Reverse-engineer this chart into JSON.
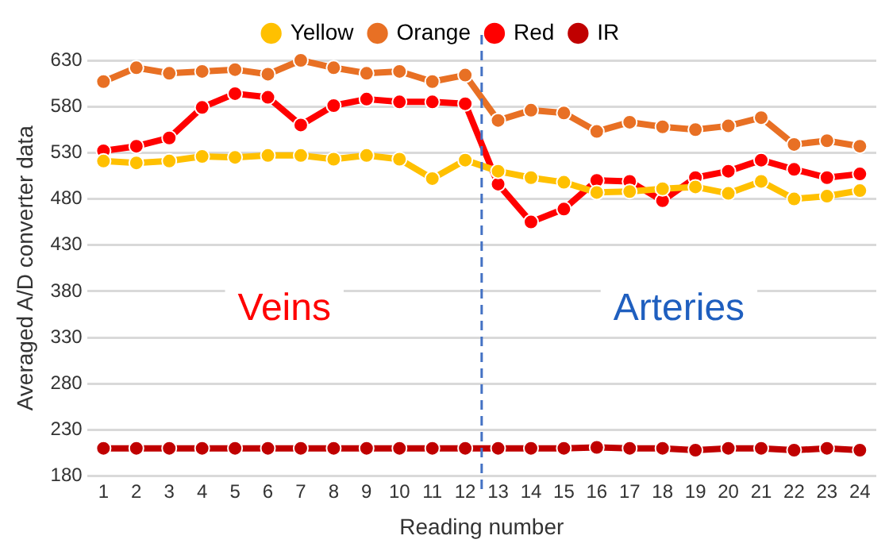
{
  "chart_data": {
    "type": "line",
    "xlabel": "Reading number",
    "ylabel": "Averaged A/D converter data",
    "x": [
      1,
      2,
      3,
      4,
      5,
      6,
      7,
      8,
      9,
      10,
      11,
      12,
      13,
      14,
      15,
      16,
      17,
      18,
      19,
      20,
      21,
      22,
      23,
      24
    ],
    "xlim": [
      0.5,
      24.5
    ],
    "xticks": [
      1,
      2,
      3,
      4,
      5,
      6,
      7,
      8,
      9,
      10,
      11,
      12,
      13,
      14,
      15,
      16,
      17,
      18,
      19,
      20,
      21,
      22,
      23,
      24
    ],
    "ylim": [
      180,
      630
    ],
    "yticks": [
      180,
      230,
      280,
      330,
      380,
      430,
      480,
      530,
      580,
      630
    ],
    "grid": "y",
    "legend": "top",
    "marker": "circle",
    "series": [
      {
        "name": "Yellow",
        "color": "#ffc000",
        "values": [
          521,
          519,
          521,
          526,
          525,
          527,
          527,
          523,
          527,
          523,
          502,
          522,
          510,
          503,
          498,
          487,
          488,
          491,
          493,
          486,
          499,
          480,
          483,
          489
        ]
      },
      {
        "name": "Orange",
        "color": "#e87024",
        "values": [
          607,
          622,
          616,
          618,
          620,
          615,
          630,
          622,
          616,
          618,
          607,
          614,
          565,
          576,
          573,
          553,
          563,
          558,
          555,
          559,
          568,
          539,
          543,
          537
        ]
      },
      {
        "name": "Red",
        "color": "#ff0000",
        "values": [
          532,
          537,
          546,
          579,
          594,
          590,
          560,
          581,
          588,
          585,
          585,
          583,
          496,
          455,
          469,
          500,
          499,
          478,
          503,
          510,
          522,
          512,
          503,
          507
        ]
      },
      {
        "name": "IR",
        "color": "#c00000",
        "values": [
          210,
          210,
          210,
          210,
          210,
          210,
          210,
          210,
          210,
          210,
          210,
          210,
          210,
          210,
          210,
          211,
          210,
          210,
          208,
          210,
          210,
          208,
          210,
          208
        ]
      }
    ],
    "ref_lines": [
      {
        "axis": "x",
        "value": 12.5,
        "color": "#4472c4",
        "line_style": "dashed"
      }
    ],
    "annotations": [
      "Veins",
      "Arteries"
    ]
  }
}
